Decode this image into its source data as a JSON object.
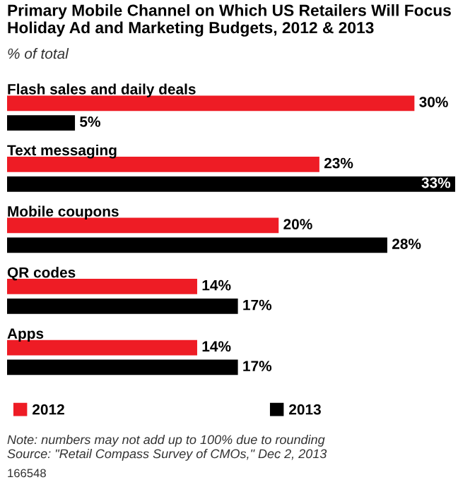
{
  "chart_data": {
    "type": "bar",
    "orientation": "horizontal",
    "title": "Primary Mobile Channel on Which US Retailers Will Focus Holiday Ad and Marketing Budgets, 2012 & 2013",
    "subtitle": "% of total",
    "categories": [
      "Flash sales and daily deals",
      "Text messaging",
      "Mobile coupons",
      "QR codes",
      "Apps"
    ],
    "series": [
      {
        "name": "2012",
        "color": "#ee1c25",
        "values": [
          30,
          23,
          20,
          14,
          14
        ],
        "value_labels": [
          "30%",
          "23%",
          "20%",
          "14%",
          "14%"
        ]
      },
      {
        "name": "2013",
        "color": "#000000",
        "values": [
          5,
          33,
          28,
          17,
          17
        ],
        "value_labels": [
          "5%",
          "33%",
          "28%",
          "17%",
          "17%"
        ]
      }
    ],
    "legend": "bottom",
    "annotations": [
      "Note: numbers may not add up to 100% due to rounding",
      "Source: \"Retail Compass Survey of CMOs,\" Dec 2, 2013",
      "166548"
    ]
  }
}
